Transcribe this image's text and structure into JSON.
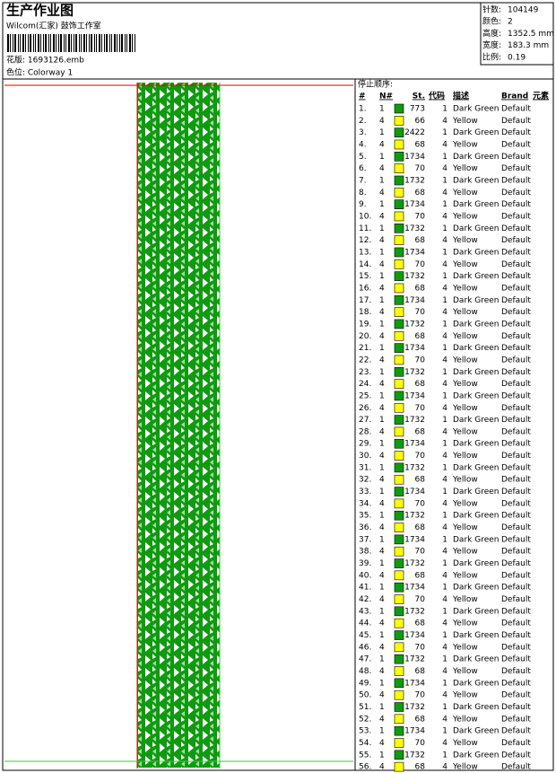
{
  "header": {
    "title": "生产作业图",
    "studio": "Wilcom(汇家) 鼓饰工作室",
    "design": "花版: 1693126.emb",
    "colorway": "色位: Colorway 1"
  },
  "info": [
    {
      "label": "针数:",
      "value": "104149"
    },
    {
      "label": "颜色:",
      "value": "2"
    },
    {
      "label": "高度:",
      "value": "1352.5 mm"
    },
    {
      "label": "宽度:",
      "value": "183.3 mm"
    },
    {
      "label": "比例:",
      "value": "0.19"
    }
  ],
  "table": {
    "caption": "停止顺序:",
    "columns": [
      "#",
      "N#",
      "St.",
      "代码",
      "描述",
      "Brand",
      "元素"
    ],
    "rows": [
      [
        "1.",
        1,
        773,
        1,
        "Dark Green",
        "Default"
      ],
      [
        "2.",
        4,
        66,
        4,
        "Yellow",
        "Default"
      ],
      [
        "3.",
        1,
        2422,
        1,
        "Dark Green",
        "Default"
      ],
      [
        "4.",
        4,
        68,
        4,
        "Yellow",
        "Default"
      ],
      [
        "5.",
        1,
        1734,
        1,
        "Dark Green",
        "Default"
      ],
      [
        "6.",
        4,
        70,
        4,
        "Yellow",
        "Default"
      ],
      [
        "7.",
        1,
        1732,
        1,
        "Dark Green",
        "Default"
      ],
      [
        "8.",
        4,
        68,
        4,
        "Yellow",
        "Default"
      ],
      [
        "9.",
        1,
        1734,
        1,
        "Dark Green",
        "Default"
      ],
      [
        "10.",
        4,
        70,
        4,
        "Yellow",
        "Default"
      ],
      [
        "11.",
        1,
        1732,
        1,
        "Dark Green",
        "Default"
      ],
      [
        "12.",
        4,
        68,
        4,
        "Yellow",
        "Default"
      ],
      [
        "13.",
        1,
        1734,
        1,
        "Dark Green",
        "Default"
      ],
      [
        "14.",
        4,
        70,
        4,
        "Yellow",
        "Default"
      ],
      [
        "15.",
        1,
        1732,
        1,
        "Dark Green",
        "Default"
      ],
      [
        "16.",
        4,
        68,
        4,
        "Yellow",
        "Default"
      ],
      [
        "17.",
        1,
        1734,
        1,
        "Dark Green",
        "Default"
      ],
      [
        "18.",
        4,
        70,
        4,
        "Yellow",
        "Default"
      ],
      [
        "19.",
        1,
        1732,
        1,
        "Dark Green",
        "Default"
      ],
      [
        "20.",
        4,
        68,
        4,
        "Yellow",
        "Default"
      ],
      [
        "21.",
        1,
        1734,
        1,
        "Dark Green",
        "Default"
      ],
      [
        "22.",
        4,
        70,
        4,
        "Yellow",
        "Default"
      ],
      [
        "23.",
        1,
        1732,
        1,
        "Dark Green",
        "Default"
      ],
      [
        "24.",
        4,
        68,
        4,
        "Yellow",
        "Default"
      ],
      [
        "25.",
        1,
        1734,
        1,
        "Dark Green",
        "Default"
      ],
      [
        "26.",
        4,
        70,
        4,
        "Yellow",
        "Default"
      ],
      [
        "27.",
        1,
        1732,
        1,
        "Dark Green",
        "Default"
      ],
      [
        "28.",
        4,
        68,
        4,
        "Yellow",
        "Default"
      ],
      [
        "29.",
        1,
        1734,
        1,
        "Dark Green",
        "Default"
      ],
      [
        "30.",
        4,
        70,
        4,
        "Yellow",
        "Default"
      ],
      [
        "31.",
        1,
        1732,
        1,
        "Dark Green",
        "Default"
      ],
      [
        "32.",
        4,
        68,
        4,
        "Yellow",
        "Default"
      ],
      [
        "33.",
        1,
        1734,
        1,
        "Dark Green",
        "Default"
      ],
      [
        "34.",
        4,
        70,
        4,
        "Yellow",
        "Default"
      ],
      [
        "35.",
        1,
        1732,
        1,
        "Dark Green",
        "Default"
      ],
      [
        "36.",
        4,
        68,
        4,
        "Yellow",
        "Default"
      ],
      [
        "37.",
        1,
        1734,
        1,
        "Dark Green",
        "Default"
      ],
      [
        "38.",
        4,
        70,
        4,
        "Yellow",
        "Default"
      ],
      [
        "39.",
        1,
        1732,
        1,
        "Dark Green",
        "Default"
      ],
      [
        "40.",
        4,
        68,
        4,
        "Yellow",
        "Default"
      ],
      [
        "41.",
        1,
        1734,
        1,
        "Dark Green",
        "Default"
      ],
      [
        "42.",
        4,
        70,
        4,
        "Yellow",
        "Default"
      ],
      [
        "43.",
        1,
        1732,
        1,
        "Dark Green",
        "Default"
      ],
      [
        "44.",
        4,
        68,
        4,
        "Yellow",
        "Default"
      ],
      [
        "45.",
        1,
        1734,
        1,
        "Dark Green",
        "Default"
      ],
      [
        "46.",
        4,
        70,
        4,
        "Yellow",
        "Default"
      ],
      [
        "47.",
        1,
        1732,
        1,
        "Dark Green",
        "Default"
      ],
      [
        "48.",
        4,
        68,
        4,
        "Yellow",
        "Default"
      ],
      [
        "49.",
        1,
        1734,
        1,
        "Dark Green",
        "Default"
      ],
      [
        "50.",
        4,
        70,
        4,
        "Yellow",
        "Default"
      ],
      [
        "51.",
        1,
        1732,
        1,
        "Dark Green",
        "Default"
      ],
      [
        "52.",
        4,
        68,
        4,
        "Yellow",
        "Default"
      ],
      [
        "53.",
        1,
        1734,
        1,
        "Dark Green",
        "Default"
      ],
      [
        "54.",
        4,
        70,
        4,
        "Yellow",
        "Default"
      ],
      [
        "55.",
        1,
        1732,
        1,
        "Dark Green",
        "Default"
      ],
      [
        "56.",
        4,
        68,
        4,
        "Yellow",
        "Default"
      ]
    ]
  }
}
